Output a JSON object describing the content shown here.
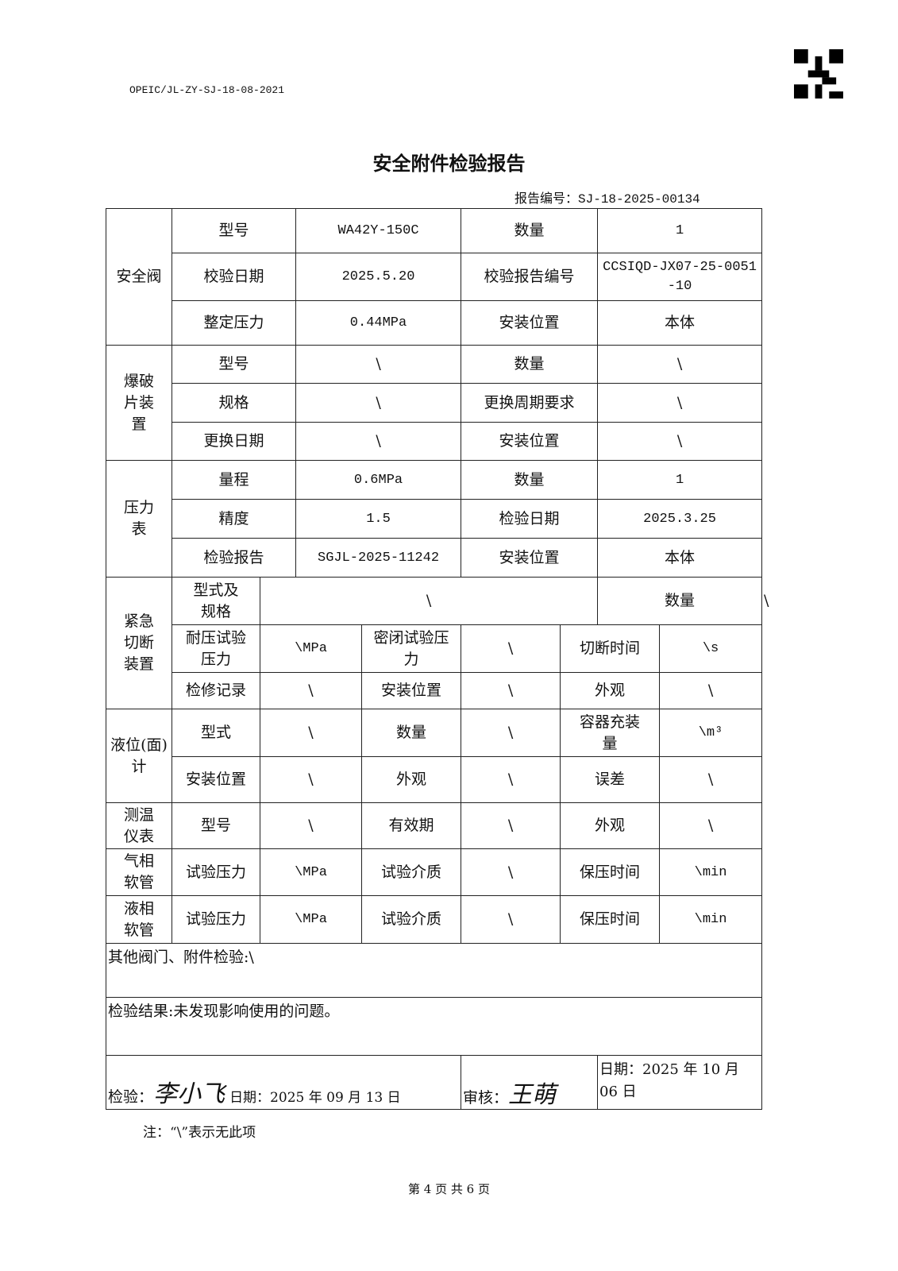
{
  "header": {
    "form_code": "OPEIC/JL-ZY-SJ-18-08-2021",
    "title": "安全附件检验报告",
    "report_no_label": "报告编号：",
    "report_no": "SJ-18-2025-00134"
  },
  "safety_valve": {
    "section": "安全阀",
    "rows": [
      [
        "型号",
        "WA42Y-150C",
        "数量",
        "1"
      ],
      [
        "校验日期",
        "2025.5.20",
        "校验报告编号",
        "CCSIQD-JX07-25-0051-10"
      ],
      [
        "整定压力",
        "0.44MPa",
        "安装位置",
        "本体"
      ]
    ]
  },
  "burst_disc": {
    "section": "爆破片装置",
    "rows": [
      [
        "型号",
        "\\",
        "数量",
        "\\"
      ],
      [
        "规格",
        "\\",
        "更换周期要求",
        "\\"
      ],
      [
        "更换日期",
        "\\",
        "安装位置",
        "\\"
      ]
    ]
  },
  "pressure_gauge": {
    "section": "压力表",
    "rows": [
      [
        "量程",
        "0.6MPa",
        "数量",
        "1"
      ],
      [
        "精度",
        "1.5",
        "检验日期",
        "2025.3.25"
      ],
      [
        "检验报告",
        "SGJL-2025-11242",
        "安装位置",
        "本体"
      ]
    ]
  },
  "emergency_shutoff": {
    "section": "紧急切断装置",
    "row1": [
      "型式及规格",
      "\\",
      "数量",
      "\\"
    ],
    "row2": [
      "耐压试验压力",
      "\\MPa",
      "密闭试验压力",
      "\\",
      "切断时间",
      "\\s"
    ],
    "row3": [
      "检修记录",
      "\\",
      "安装位置",
      "\\",
      "外观",
      "\\"
    ]
  },
  "level_gauge": {
    "section": "液位(面)计",
    "row1": [
      "型式",
      "\\",
      "数量",
      "\\",
      "容器充装量",
      "\\m³"
    ],
    "row2": [
      "安装位置",
      "\\",
      "外观",
      "\\",
      "误差",
      "\\"
    ]
  },
  "thermometer": {
    "section": "测温仪表",
    "row": [
      "型号",
      "\\",
      "有效期",
      "\\",
      "外观",
      "\\"
    ]
  },
  "gas_hose": {
    "section": "气相软管",
    "row": [
      "试验压力",
      "\\MPa",
      "试验介质",
      "\\",
      "保压时间",
      "\\min"
    ]
  },
  "liquid_hose": {
    "section": "液相软管",
    "row": [
      "试验压力",
      "\\MPa",
      "试验介质",
      "\\",
      "保压时间",
      "\\min"
    ]
  },
  "other": "其他阀门、附件检验:\\",
  "result": "检验结果:未发现影响使用的问题。",
  "sign": {
    "inspect_label": "检验：",
    "inspector_signature": "李小飞",
    "inspect_date": "日期：2025 年 09 月 13 日",
    "review_label": "审核：",
    "reviewer_signature": "王萌",
    "review_date": "日期：2025 年 10 月 06 日"
  },
  "note": "注：“\\”表示无此项",
  "page": "第 4 页 共 6 页"
}
